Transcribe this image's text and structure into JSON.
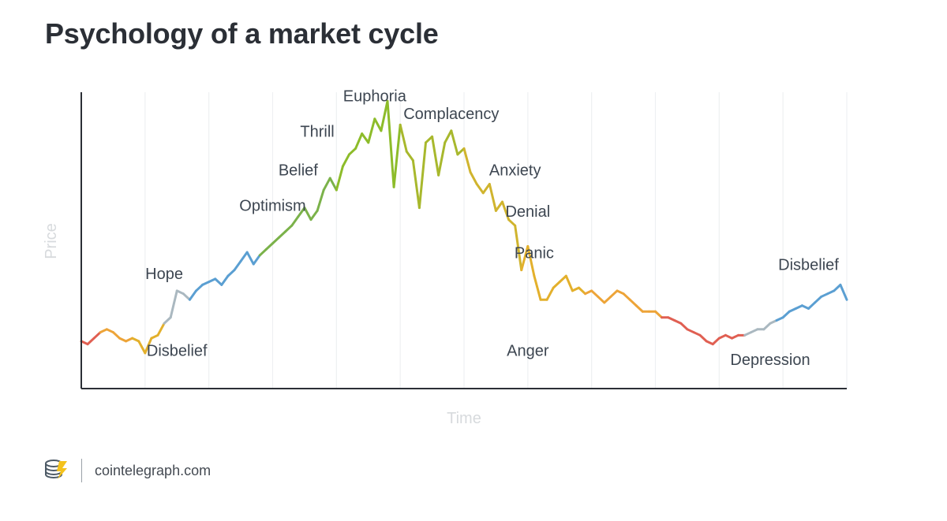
{
  "title": "Psychology of a market cycle",
  "footer": {
    "site": "cointelegraph.com",
    "logo_icon": "cointelegraph-logo-icon"
  },
  "chart_data": {
    "type": "line",
    "title": "Psychology of a market cycle",
    "xlabel": "Time",
    "ylabel": "Price",
    "x_ticks_shown": false,
    "y_ticks_shown": false,
    "grid": "vertical",
    "xlim": [
      0,
      120
    ],
    "ylim": [
      0,
      100
    ],
    "color_scale": {
      "Disbelief": "#5b9fd2",
      "Hope": "#aab8c0",
      "Optimism": "#7bb24a",
      "Euphoria": "#8dbc2a",
      "Complacency": "#a8b82d",
      "Anxiety": "#d0b42e",
      "Panic": "#e3b02c",
      "Anger": "#eda438",
      "Depression": "#e05f52"
    },
    "series": [
      {
        "name": "Price",
        "x": [
          0,
          1,
          2,
          3,
          4,
          5,
          6,
          7,
          8,
          9,
          10,
          11,
          12,
          13,
          14,
          15,
          16,
          17,
          18,
          19,
          20,
          21,
          22,
          23,
          24,
          25,
          26,
          27,
          28,
          29,
          30,
          31,
          32,
          33,
          34,
          35,
          36,
          37,
          38,
          39,
          40,
          41,
          42,
          43,
          44,
          45,
          46,
          47,
          48,
          49,
          50,
          51,
          52,
          53,
          54,
          55,
          56,
          57,
          58,
          59,
          60,
          61,
          62,
          63,
          64,
          65,
          66,
          67,
          68,
          69,
          70,
          71,
          72,
          73,
          74,
          75,
          76,
          77,
          78,
          79,
          80,
          81,
          82,
          83,
          84,
          85,
          86,
          87,
          88,
          89,
          90,
          91,
          92,
          93,
          94,
          95,
          96,
          97,
          98,
          99,
          100,
          101,
          102,
          103,
          104,
          105,
          106,
          107,
          108,
          109,
          110,
          111,
          112,
          113,
          114,
          115,
          116,
          117,
          118,
          119,
          120
        ],
        "y": [
          16,
          15,
          17,
          19,
          20,
          19,
          17,
          16,
          17,
          16,
          12,
          17,
          18,
          22,
          24,
          33,
          32,
          30,
          33,
          35,
          36,
          37,
          35,
          38,
          40,
          43,
          46,
          42,
          45,
          47,
          49,
          51,
          53,
          55,
          58,
          61,
          57,
          60,
          67,
          71,
          67,
          75,
          79,
          81,
          86,
          83,
          91,
          87,
          97,
          68,
          89,
          80,
          77,
          61,
          83,
          85,
          72,
          83,
          87,
          79,
          81,
          73,
          69,
          66,
          69,
          60,
          63,
          57,
          55,
          40,
          48,
          38,
          30,
          30,
          34,
          36,
          38,
          33,
          34,
          32,
          33,
          31,
          29,
          31,
          33,
          32,
          30,
          28,
          26,
          26,
          26,
          24,
          24,
          23,
          22,
          20,
          19,
          18,
          16,
          15,
          17,
          18,
          17,
          18,
          18,
          19,
          20,
          20,
          22,
          23,
          24,
          26,
          27,
          28,
          27,
          29,
          31,
          32,
          33,
          35,
          30
        ],
        "stage_colors": [
          "Depression",
          "Depression",
          "Depression",
          "Anger",
          "Anger",
          "Anger",
          "Anger",
          "Anger",
          "Panic",
          "Panic",
          "Panic",
          "Panic",
          "Panic",
          "Hope",
          "Hope",
          "Hope",
          "Hope",
          "Disbelief",
          "Disbelief",
          "Disbelief",
          "Disbelief",
          "Disbelief",
          "Disbelief",
          "Disbelief",
          "Disbelief",
          "Disbelief",
          "Disbelief",
          "Disbelief",
          "Optimism",
          "Optimism",
          "Optimism",
          "Optimism",
          "Optimism",
          "Optimism",
          "Optimism",
          "Optimism",
          "Optimism",
          "Optimism",
          "Optimism",
          "Optimism",
          "Euphoria",
          "Euphoria",
          "Euphoria",
          "Euphoria",
          "Euphoria",
          "Euphoria",
          "Euphoria",
          "Euphoria",
          "Euphoria",
          "Euphoria",
          "Complacency",
          "Complacency",
          "Complacency",
          "Complacency",
          "Complacency",
          "Complacency",
          "Complacency",
          "Complacency",
          "Complacency",
          "Complacency",
          "Anxiety",
          "Anxiety",
          "Anxiety",
          "Anxiety",
          "Anxiety",
          "Anxiety",
          "Anxiety",
          "Anxiety",
          "Anxiety",
          "Panic",
          "Panic",
          "Panic",
          "Panic",
          "Panic",
          "Panic",
          "Panic",
          "Panic",
          "Panic",
          "Panic",
          "Anger",
          "Anger",
          "Anger",
          "Anger",
          "Anger",
          "Anger",
          "Anger",
          "Anger",
          "Anger",
          "Anger",
          "Anger",
          "Anger",
          "Depression",
          "Depression",
          "Depression",
          "Depression",
          "Depression",
          "Depression",
          "Depression",
          "Depression",
          "Depression",
          "Depression",
          "Depression",
          "Depression",
          "Depression",
          "Hope",
          "Hope",
          "Hope",
          "Hope",
          "Hope",
          "Disbelief",
          "Disbelief",
          "Disbelief",
          "Disbelief",
          "Disbelief",
          "Disbelief",
          "Disbelief",
          "Disbelief",
          "Disbelief",
          "Disbelief",
          "Disbelief",
          "Disbelief"
        ]
      }
    ],
    "annotations": [
      {
        "text": "Hope",
        "x": 13,
        "y": 37
      },
      {
        "text": "Disbelief",
        "x": 15,
        "y": 11
      },
      {
        "text": "Optimism",
        "x": 30,
        "y": 60
      },
      {
        "text": "Belief",
        "x": 34,
        "y": 72
      },
      {
        "text": "Thrill",
        "x": 37,
        "y": 85
      },
      {
        "text": "Euphoria",
        "x": 46,
        "y": 97
      },
      {
        "text": "Complacency",
        "x": 58,
        "y": 91
      },
      {
        "text": "Anxiety",
        "x": 68,
        "y": 72
      },
      {
        "text": "Denial",
        "x": 70,
        "y": 58
      },
      {
        "text": "Panic",
        "x": 71,
        "y": 44
      },
      {
        "text": "Anger",
        "x": 70,
        "y": 11
      },
      {
        "text": "Depression",
        "x": 108,
        "y": 8
      },
      {
        "text": "Disbelief",
        "x": 114,
        "y": 40
      }
    ]
  }
}
